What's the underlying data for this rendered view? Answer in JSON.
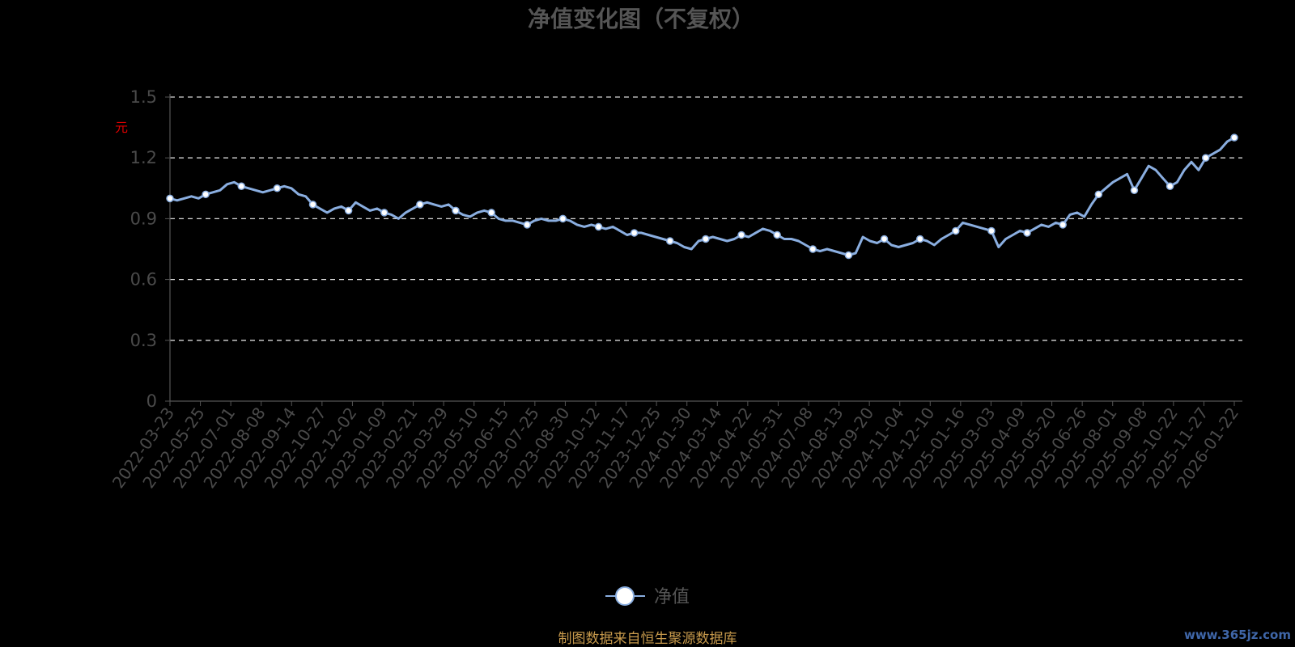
{
  "chart_data": {
    "type": "line",
    "title": "净值变化图（不复权）",
    "ylabel": "元",
    "ylim": [
      0,
      1.5
    ],
    "yticks": [
      "0",
      "0.3",
      "0.6",
      "0.9",
      "1.2",
      "1.5"
    ],
    "grid": true,
    "legend_position": "bottom-center",
    "x_tick_labels": [
      "2022-03-23",
      "2022-05-25",
      "2022-07-01",
      "2022-08-08",
      "2022-09-14",
      "2022-10-27",
      "2022-12-02",
      "2023-01-09",
      "2023-02-21",
      "2023-03-29",
      "2023-05-10",
      "2023-06-15",
      "2023-07-25",
      "2023-08-30",
      "2023-10-12",
      "2023-11-17",
      "2023-12-25",
      "2024-01-30",
      "2024-03-14",
      "2024-04-22",
      "2024-05-31",
      "2024-07-08",
      "2024-08-13",
      "2024-09-20",
      "2024-11-04",
      "2024-12-10",
      "2025-01-16",
      "2025-03-03",
      "2025-04-09",
      "2025-05-20",
      "2025-06-26",
      "2025-08-01",
      "2025-09-08",
      "2025-10-22",
      "2025-11-27",
      "2026-01-22"
    ],
    "series": [
      {
        "name": "净值",
        "color": "#8aaee0",
        "marker_color": "#ffffff",
        "values": [
          1.0,
          0.99,
          1.0,
          1.01,
          1.0,
          1.02,
          1.03,
          1.04,
          1.07,
          1.08,
          1.06,
          1.05,
          1.04,
          1.03,
          1.04,
          1.05,
          1.06,
          1.05,
          1.02,
          1.01,
          0.97,
          0.95,
          0.93,
          0.95,
          0.96,
          0.94,
          0.98,
          0.96,
          0.94,
          0.95,
          0.93,
          0.92,
          0.9,
          0.93,
          0.95,
          0.97,
          0.98,
          0.97,
          0.96,
          0.97,
          0.94,
          0.92,
          0.91,
          0.93,
          0.94,
          0.93,
          0.9,
          0.89,
          0.89,
          0.88,
          0.87,
          0.89,
          0.9,
          0.89,
          0.89,
          0.9,
          0.89,
          0.87,
          0.86,
          0.87,
          0.86,
          0.85,
          0.86,
          0.84,
          0.82,
          0.83,
          0.83,
          0.82,
          0.81,
          0.8,
          0.79,
          0.78,
          0.76,
          0.75,
          0.79,
          0.8,
          0.81,
          0.8,
          0.79,
          0.8,
          0.82,
          0.81,
          0.83,
          0.85,
          0.84,
          0.82,
          0.8,
          0.8,
          0.79,
          0.77,
          0.75,
          0.74,
          0.75,
          0.74,
          0.73,
          0.72,
          0.73,
          0.81,
          0.79,
          0.78,
          0.8,
          0.77,
          0.76,
          0.77,
          0.78,
          0.8,
          0.79,
          0.77,
          0.8,
          0.82,
          0.84,
          0.88,
          0.87,
          0.86,
          0.85,
          0.84,
          0.76,
          0.8,
          0.82,
          0.84,
          0.83,
          0.85,
          0.87,
          0.86,
          0.88,
          0.87,
          0.92,
          0.93,
          0.91,
          0.97,
          1.02,
          1.05,
          1.08,
          1.1,
          1.12,
          1.04,
          1.1,
          1.16,
          1.14,
          1.1,
          1.06,
          1.08,
          1.14,
          1.18,
          1.14,
          1.2,
          1.22,
          1.24,
          1.28,
          1.3
        ],
        "marker_every": 5
      }
    ]
  },
  "footer": {
    "source": "制图数据来自恒生聚源数据库",
    "watermark": "www.365jz.com"
  }
}
